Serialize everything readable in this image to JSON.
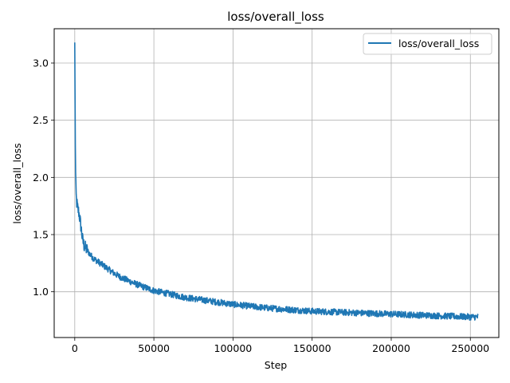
{
  "chart_data": {
    "type": "line",
    "title": "loss/overall_loss",
    "xlabel": "Step",
    "ylabel": "loss/overall_loss",
    "xlim": [
      -13000,
      268000
    ],
    "ylim": [
      0.6,
      3.3
    ],
    "grid": true,
    "legend_position": "top-right",
    "x_ticks": [
      0,
      50000,
      100000,
      150000,
      200000,
      250000
    ],
    "x_tick_labels": [
      "0",
      "50000",
      "100000",
      "150000",
      "200000",
      "250000"
    ],
    "y_ticks": [
      1.0,
      1.5,
      2.0,
      2.5,
      3.0
    ],
    "y_tick_labels": [
      "1.0",
      "1.5",
      "2.0",
      "2.5",
      "3.0"
    ],
    "series": [
      {
        "name": "loss/overall_loss",
        "color": "#1f77b4",
        "x": [
          0,
          300,
          600,
          1000,
          1500,
          2000,
          2500,
          3000,
          4000,
          5000,
          6000,
          7000,
          8000,
          10000,
          12000,
          15000,
          20000,
          25000,
          30000,
          40000,
          50000,
          60000,
          70000,
          80000,
          90000,
          100000,
          110000,
          120000,
          130000,
          140000,
          150000,
          160000,
          170000,
          180000,
          190000,
          200000,
          210000,
          220000,
          230000,
          240000,
          250000,
          255000
        ],
        "y": [
          3.18,
          2.4,
          1.95,
          1.8,
          1.76,
          1.72,
          1.7,
          1.66,
          1.56,
          1.45,
          1.4,
          1.38,
          1.36,
          1.32,
          1.29,
          1.26,
          1.21,
          1.16,
          1.12,
          1.06,
          1.01,
          0.98,
          0.95,
          0.93,
          0.91,
          0.89,
          0.875,
          0.86,
          0.85,
          0.84,
          0.83,
          0.825,
          0.82,
          0.815,
          0.81,
          0.805,
          0.8,
          0.795,
          0.79,
          0.785,
          0.78,
          0.78
        ]
      }
    ]
  }
}
